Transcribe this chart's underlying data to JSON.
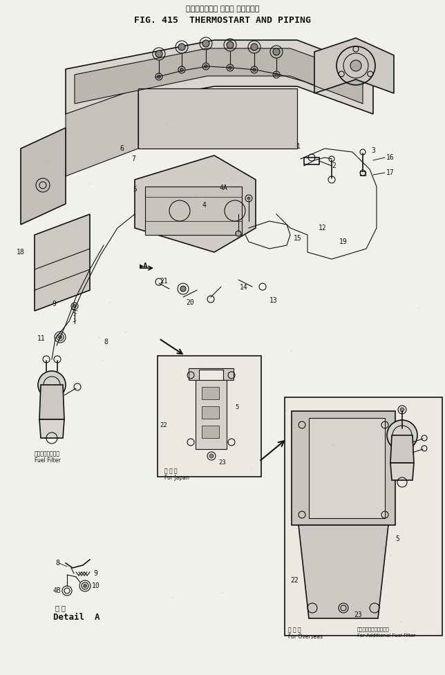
{
  "title_japanese": "サーモスタート および パイピング",
  "title_english": "FIG. 415  THERMOSTART AND PIPING",
  "bg_color": "#f2f0ec",
  "fig_width": 6.44,
  "fig_height": 9.77,
  "dpi": 100,
  "labels": {
    "fuel_filter_jp": "フュエルフィルタ",
    "fuel_filter_en": "Fuel Filter",
    "for_japan_jp": "国 内 用",
    "for_japan_en": "For Japan",
    "for_overseas_jp": "海 外 用",
    "for_overseas_en": "For Overseas",
    "for_add_filter_jp": "フュエルフィルタ追加用",
    "for_add_filter_en": "For Additional Fuel Filter",
    "detail_a_jp": "詳 細",
    "detail_a_en": "Detail  A",
    "arrow_a": "A"
  }
}
